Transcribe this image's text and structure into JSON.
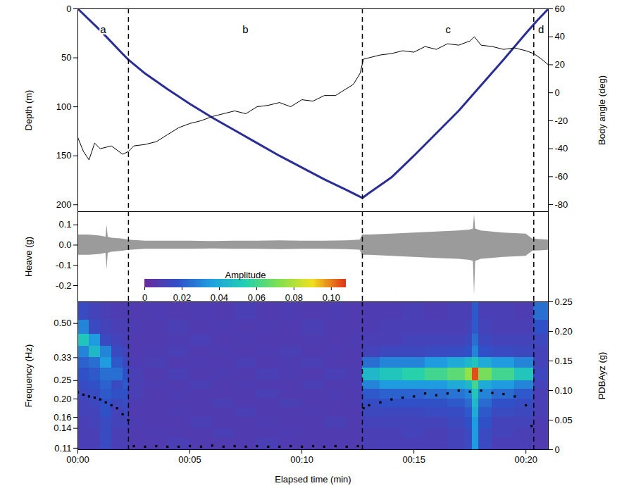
{
  "chart_data": [
    {
      "type": "line",
      "xlim": [
        0,
        21
      ],
      "tick_labels": "y",
      "ylim": [
        0,
        207
      ],
      "yticks": [
        0,
        50,
        100,
        150,
        200
      ],
      "ylabel": "Depth (m)",
      "y2lim": [
        -85,
        60
      ],
      "y2ticks": [
        60,
        40,
        20,
        0,
        -20,
        -40,
        -60,
        -80
      ],
      "y2label": "Body angle (deg)",
      "segments": {
        "labels": [
          "a",
          "b",
          "c",
          "d"
        ],
        "boundaries": [
          2.26,
          12.7,
          20.35
        ],
        "line_style": "dashed"
      },
      "series": [
        {
          "name": "Depth (m)",
          "color": "#2a2d94",
          "x": [
            0,
            1,
            2,
            2.26,
            3,
            4,
            5,
            6,
            7,
            8,
            9,
            10,
            11,
            12,
            12.7,
            13,
            14,
            15,
            16,
            17,
            18,
            19,
            20,
            20.5,
            21
          ],
          "values": [
            0,
            22,
            46,
            52,
            66,
            82,
            97,
            111,
            124,
            137,
            150,
            162,
            174,
            185,
            193,
            188,
            172,
            150,
            127,
            104,
            78,
            52,
            25,
            12,
            0
          ]
        },
        {
          "name": "Body angle (deg)",
          "color": "#000000",
          "axis": "y2",
          "x": [
            0,
            0.25,
            0.5,
            0.75,
            1,
            1.5,
            2,
            2.26,
            2.5,
            3,
            3.5,
            4,
            4.5,
            5,
            5.5,
            6,
            6.5,
            7,
            7.5,
            8,
            8.5,
            9,
            9.5,
            10,
            10.5,
            11,
            11.5,
            12,
            12.3,
            12.6,
            12.75,
            13,
            13.5,
            14,
            14.5,
            15,
            15.5,
            16,
            16.5,
            17,
            17.5,
            17.7,
            18,
            18.5,
            19,
            19.5,
            20,
            20.35,
            20.7,
            21
          ],
          "values": [
            -32,
            -42,
            -48,
            -36,
            -40,
            -38,
            -44,
            -42,
            -38,
            -37,
            -35,
            -30,
            -25,
            -22,
            -20,
            -17,
            -15,
            -13,
            -15,
            -10,
            -9,
            -7,
            -10,
            -5,
            -6,
            -2,
            -2,
            3,
            6,
            14,
            24,
            25,
            27,
            28,
            30,
            29,
            33,
            31,
            35,
            34,
            37,
            40,
            34,
            33,
            31,
            32,
            30,
            28,
            24,
            20
          ]
        }
      ]
    },
    {
      "type": "area",
      "xlim": [
        0,
        21
      ],
      "tick_labels": "y",
      "ylim": [
        -0.28,
        0.165
      ],
      "yticks": [
        0.1,
        {
          "value": 0,
          "label": "0.0"
        },
        -0.1,
        -0.2
      ],
      "ylabel": "Heave (g)",
      "series": [
        {
          "name": "Heave (g)",
          "color": "#9b9b9b",
          "x": [
            0,
            0.5,
            1,
            1.25,
            1.3,
            1.35,
            1.5,
            2,
            2.26,
            3,
            4,
            5,
            6,
            7,
            8,
            9,
            10,
            11,
            12,
            12.6,
            12.7,
            13,
            14,
            15,
            16,
            17,
            17.5,
            17.65,
            17.7,
            17.75,
            18,
            19,
            20,
            20.3,
            21
          ],
          "values_max": [
            0.05,
            0.05,
            0.045,
            0.04,
            0.1,
            0.04,
            0.035,
            0.03,
            0.025,
            0.02,
            0.02,
            0.02,
            0.018,
            0.02,
            0.02,
            0.022,
            0.02,
            0.02,
            0.022,
            0.025,
            0.05,
            0.05,
            0.055,
            0.06,
            0.065,
            0.07,
            0.075,
            0.08,
            0.15,
            0.08,
            0.07,
            0.06,
            0.055,
            0.03,
            0.025
          ],
          "values_min": [
            -0.05,
            -0.05,
            -0.045,
            -0.04,
            -0.12,
            -0.04,
            -0.035,
            -0.03,
            -0.025,
            -0.02,
            -0.02,
            -0.02,
            -0.018,
            -0.02,
            -0.02,
            -0.022,
            -0.02,
            -0.02,
            -0.022,
            -0.025,
            -0.05,
            -0.05,
            -0.055,
            -0.06,
            -0.065,
            -0.07,
            -0.075,
            -0.08,
            -0.25,
            -0.08,
            -0.07,
            -0.06,
            -0.055,
            -0.03,
            -0.025
          ]
        }
      ]
    },
    {
      "type": "heatmap",
      "xlim": [
        0,
        21
      ],
      "xticks": [
        {
          "value": 0,
          "label": "00:00"
        },
        {
          "value": 5,
          "label": "00:05"
        },
        {
          "value": 10,
          "label": "00:10"
        },
        {
          "value": 15,
          "label": "00:15"
        },
        {
          "value": 20,
          "label": "00:20"
        }
      ],
      "xlabel": "Elapsed time (min)",
      "log": "y",
      "ylim": [
        0.108,
        0.65
      ],
      "yticks": [
        {
          "value": 0.5,
          "label": "0.50"
        },
        0.33,
        0.25,
        {
          "value": 0.2,
          "label": "0.20"
        },
        0.16,
        0.14,
        0.11
      ],
      "ylabel": "Frequency (Hz)",
      "y2lim": [
        0,
        0.25
      ],
      "y2ticks": [
        0,
        0.05,
        {
          "value": 0.1,
          "label": "0.10"
        },
        0.15,
        {
          "value": 0.2,
          "label": "0.20"
        },
        0.25
      ],
      "y2label": "PDBAyz (g)",
      "x_edges": [
        0,
        0.5,
        1,
        1.5,
        2,
        2.26,
        3,
        4,
        5,
        6,
        7,
        8,
        9,
        10,
        11,
        12,
        12.7,
        13.5,
        14.5,
        15.5,
        16.5,
        17.3,
        17.6,
        17.9,
        18.5,
        19.5,
        20.35,
        21
      ],
      "y_edges": [
        0.108,
        0.125,
        0.14,
        0.16,
        0.18,
        0.2,
        0.225,
        0.25,
        0.29,
        0.33,
        0.38,
        0.44,
        0.52,
        0.65
      ],
      "cells": [
        [
          0.01,
          0.01,
          0.015,
          0.01,
          0.01,
          0.008,
          0.008,
          0.01,
          0.008,
          0.008,
          0.008,
          0.01,
          0.008,
          0.008,
          0.008,
          0.008,
          0.01,
          0.01,
          0.01,
          0.01,
          0.012,
          0.015,
          0.035,
          0.015,
          0.01,
          0.01,
          0.008
        ],
        [
          0.01,
          0.01,
          0.015,
          0.01,
          0.01,
          0.008,
          0.009,
          0.008,
          0.008,
          0.01,
          0.008,
          0.008,
          0.009,
          0.008,
          0.008,
          0.008,
          0.01,
          0.01,
          0.012,
          0.01,
          0.012,
          0.015,
          0.035,
          0.015,
          0.012,
          0.01,
          0.008
        ],
        [
          0.01,
          0.012,
          0.015,
          0.012,
          0.012,
          0.009,
          0.008,
          0.008,
          0.01,
          0.008,
          0.008,
          0.009,
          0.008,
          0.008,
          0.01,
          0.008,
          0.012,
          0.012,
          0.012,
          0.012,
          0.014,
          0.018,
          0.035,
          0.018,
          0.012,
          0.012,
          0.009
        ],
        [
          0.012,
          0.012,
          0.018,
          0.012,
          0.014,
          0.008,
          0.008,
          0.009,
          0.008,
          0.008,
          0.01,
          0.008,
          0.008,
          0.009,
          0.008,
          0.008,
          0.014,
          0.014,
          0.014,
          0.015,
          0.016,
          0.02,
          0.04,
          0.02,
          0.015,
          0.014,
          0.01
        ],
        [
          0.012,
          0.014,
          0.018,
          0.014,
          0.016,
          0.009,
          0.008,
          0.008,
          0.008,
          0.01,
          0.008,
          0.008,
          0.01,
          0.008,
          0.008,
          0.009,
          0.016,
          0.018,
          0.018,
          0.018,
          0.02,
          0.024,
          0.045,
          0.024,
          0.018,
          0.016,
          0.01
        ],
        [
          0.014,
          0.016,
          0.02,
          0.018,
          0.018,
          0.01,
          0.008,
          0.009,
          0.008,
          0.008,
          0.008,
          0.01,
          0.008,
          0.008,
          0.009,
          0.008,
          0.02,
          0.022,
          0.022,
          0.024,
          0.026,
          0.03,
          0.05,
          0.03,
          0.024,
          0.02,
          0.01
        ],
        [
          0.016,
          0.018,
          0.022,
          0.015,
          0.02,
          0.01,
          0.009,
          0.008,
          0.01,
          0.008,
          0.009,
          0.008,
          0.008,
          0.01,
          0.008,
          0.009,
          0.03,
          0.035,
          0.035,
          0.035,
          0.04,
          0.045,
          0.06,
          0.04,
          0.035,
          0.03,
          0.012
        ],
        [
          0.018,
          0.02,
          0.025,
          0.025,
          0.018,
          0.01,
          0.008,
          0.01,
          0.008,
          0.009,
          0.008,
          0.01,
          0.009,
          0.008,
          0.01,
          0.009,
          0.045,
          0.05,
          0.055,
          0.06,
          0.065,
          0.075,
          0.105,
          0.07,
          0.06,
          0.05,
          0.014
        ],
        [
          0.022,
          0.025,
          0.035,
          0.02,
          0.014,
          0.009,
          0.01,
          0.008,
          0.009,
          0.008,
          0.01,
          0.008,
          0.009,
          0.01,
          0.008,
          0.008,
          0.025,
          0.03,
          0.03,
          0.035,
          0.04,
          0.045,
          0.05,
          0.04,
          0.035,
          0.03,
          0.012
        ],
        [
          0.03,
          0.045,
          0.03,
          0.015,
          0.012,
          0.008,
          0.009,
          0.01,
          0.008,
          0.009,
          0.008,
          0.009,
          0.01,
          0.008,
          0.009,
          0.008,
          0.012,
          0.014,
          0.014,
          0.015,
          0.016,
          0.018,
          0.03,
          0.018,
          0.015,
          0.014,
          0.012
        ],
        [
          0.05,
          0.035,
          0.015,
          0.012,
          0.01,
          0.008,
          0.008,
          0.009,
          0.01,
          0.008,
          0.009,
          0.008,
          0.008,
          0.009,
          0.008,
          0.009,
          0.01,
          0.01,
          0.012,
          0.012,
          0.012,
          0.014,
          0.025,
          0.014,
          0.012,
          0.012,
          0.014
        ],
        [
          0.03,
          0.015,
          0.012,
          0.01,
          0.01,
          0.009,
          0.008,
          0.01,
          0.008,
          0.009,
          0.008,
          0.009,
          0.008,
          0.01,
          0.008,
          0.008,
          0.009,
          0.01,
          0.01,
          0.01,
          0.01,
          0.012,
          0.02,
          0.012,
          0.01,
          0.01,
          0.018
        ],
        [
          0.015,
          0.012,
          0.01,
          0.009,
          0.009,
          0.008,
          0.009,
          0.008,
          0.009,
          0.008,
          0.01,
          0.008,
          0.009,
          0.008,
          0.009,
          0.008,
          0.009,
          0.009,
          0.01,
          0.009,
          0.01,
          0.01,
          0.02,
          0.01,
          0.01,
          0.009,
          0.025
        ]
      ],
      "colorbar": {
        "label": "Amplitude",
        "range": [
          0,
          0.108
        ],
        "ticks": [
          0,
          0.02,
          0.04,
          0.06,
          0.08,
          {
            "value": 0.1,
            "label": "0.10"
          }
        ]
      },
      "series": [
        {
          "name": "PDBAyz (g)",
          "axis": "y2",
          "type": "scatter",
          "marker": "square",
          "color": "#000000",
          "x": [
            0,
            0.25,
            0.5,
            0.75,
            1,
            1.25,
            1.5,
            1.75,
            2,
            2.25,
            2.5,
            3,
            3.5,
            4,
            4.5,
            5,
            5.5,
            6,
            6.5,
            7,
            7.5,
            8,
            8.5,
            9,
            9.5,
            10,
            10.5,
            11,
            11.5,
            12,
            12.5,
            12.75,
            13,
            13.5,
            14,
            14.5,
            15,
            15.5,
            16,
            16.5,
            17,
            17.5,
            18,
            18.5,
            19,
            19.5,
            20,
            20.25
          ],
          "values": [
            0.097,
            0.093,
            0.09,
            0.088,
            0.085,
            0.08,
            0.075,
            0.07,
            0.06,
            0.05,
            0.006,
            0.005,
            0.006,
            0.005,
            0.005,
            0.006,
            0.005,
            0.007,
            0.005,
            0.006,
            0.005,
            0.006,
            0.005,
            0.005,
            0.006,
            0.005,
            0.006,
            0.005,
            0.006,
            0.005,
            0.006,
            0.07,
            0.075,
            0.08,
            0.085,
            0.088,
            0.09,
            0.095,
            0.092,
            0.095,
            0.1,
            0.098,
            0.1,
            0.096,
            0.094,
            0.09,
            0.075,
            0.04
          ]
        }
      ]
    }
  ]
}
